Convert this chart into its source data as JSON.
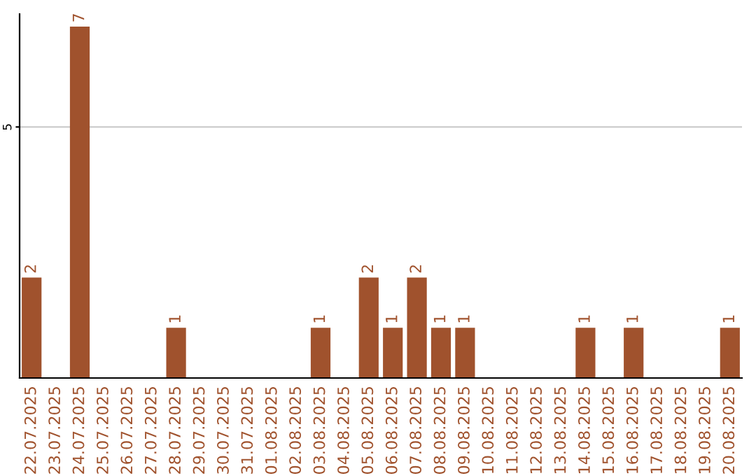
{
  "chart_data": {
    "type": "bar",
    "categories": [
      "22.07.2025",
      "23.07.2025",
      "24.07.2025",
      "25.07.2025",
      "26.07.2025",
      "27.07.2025",
      "28.07.2025",
      "29.07.2025",
      "30.07.2025",
      "31.07.2025",
      "01.08.2025",
      "02.08.2025",
      "03.08.2025",
      "04.08.2025",
      "05.08.2025",
      "06.08.2025",
      "07.08.2025",
      "08.08.2025",
      "09.08.2025",
      "10.08.2025",
      "11.08.2025",
      "12.08.2025",
      "13.08.2025",
      "14.08.2025",
      "15.08.2025",
      "16.08.2025",
      "17.08.2025",
      "18.08.2025",
      "19.08.2025",
      "20.08.2025"
    ],
    "values": [
      2,
      0,
      7,
      0,
      0,
      0,
      1,
      0,
      0,
      0,
      0,
      0,
      1,
      0,
      2,
      1,
      2,
      1,
      1,
      0,
      0,
      0,
      0,
      1,
      0,
      1,
      0,
      0,
      0,
      1
    ],
    "value_labels": [
      "2",
      null,
      "7",
      null,
      null,
      null,
      "1",
      null,
      null,
      null,
      null,
      null,
      "1",
      null,
      "2",
      "1",
      "2",
      "1",
      "1",
      null,
      null,
      null,
      null,
      "1",
      null,
      "1",
      null,
      null,
      null,
      "1"
    ],
    "color": "#a0522d",
    "ylim": [
      0,
      7.25
    ],
    "yticks": [
      5
    ],
    "grid": "y"
  }
}
